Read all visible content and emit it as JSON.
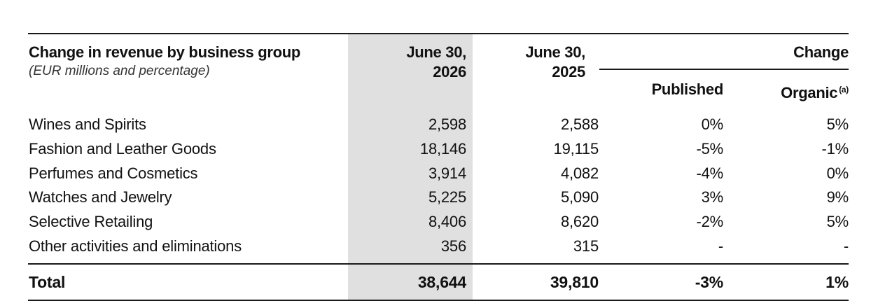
{
  "table": {
    "title": "Change in revenue by business group",
    "subtitle": "(EUR millions and percentage)",
    "columns": {
      "june_2026_line1": "June 30,",
      "june_2026_line2": "2026",
      "june_2025_line1": "June 30,",
      "june_2025_line2": "2025",
      "change": "Change",
      "published": "Published",
      "organic": "Organic",
      "organic_note": "(a)"
    },
    "rows": [
      {
        "label": "Wines and Spirits",
        "v2026": "2,598",
        "v2025": "2,588",
        "published": "0%",
        "organic": "5%"
      },
      {
        "label": "Fashion and Leather Goods",
        "v2026": "18,146",
        "v2025": "19,115",
        "published": "-5%",
        "organic": "-1%"
      },
      {
        "label": "Perfumes and Cosmetics",
        "v2026": "3,914",
        "v2025": "4,082",
        "published": "-4%",
        "organic": "0%"
      },
      {
        "label": "Watches and Jewelry",
        "v2026": "5,225",
        "v2025": "5,090",
        "published": "3%",
        "organic": "9%"
      },
      {
        "label": "Selective Retailing",
        "v2026": "8,406",
        "v2025": "8,620",
        "published": "-2%",
        "organic": "5%"
      },
      {
        "label": "Other activities and eliminations",
        "v2026": "356",
        "v2025": "315",
        "published": "-",
        "organic": "-"
      }
    ],
    "total": {
      "label": "Total",
      "v2026": "38,644",
      "v2025": "39,810",
      "published": "-3%",
      "organic": "1%"
    }
  }
}
